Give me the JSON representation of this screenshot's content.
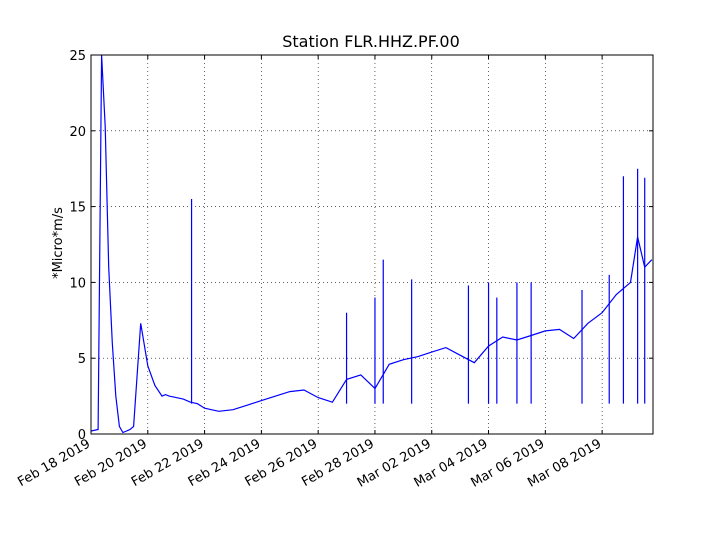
{
  "chart_data": {
    "type": "line",
    "title": "Station FLR.HHZ.PF.00",
    "xlabel": "",
    "ylabel": "*Micro*m/s",
    "ylim": [
      0,
      25
    ],
    "xlim": [
      "2019-02-18",
      "2019-03-09 19:00"
    ],
    "grid": true,
    "line_color": "#0000ff",
    "y_ticks": [
      0,
      5,
      10,
      15,
      20,
      25
    ],
    "x_ticks": [
      "Feb 18 2019",
      "Feb 20 2019",
      "Feb 22 2019",
      "Feb 24 2019",
      "Feb 26 2019",
      "Feb 28 2019",
      "Mar 02 2019",
      "Mar 04 2019",
      "Mar 06 2019",
      "Mar 08 2019"
    ],
    "series": [
      {
        "x": [
          "2019-02-18 00:00",
          "2019-02-18 06:00",
          "2019-02-18 09:00",
          "2019-02-18 12:00",
          "2019-02-18 15:00",
          "2019-02-18 18:00",
          "2019-02-18 21:00",
          "2019-02-19 00:00",
          "2019-02-19 03:00",
          "2019-02-19 06:00",
          "2019-02-19 09:00",
          "2019-02-19 12:00",
          "2019-02-19 18:00",
          "2019-02-20 00:00",
          "2019-02-20 06:00",
          "2019-02-20 12:00",
          "2019-02-20 15:00",
          "2019-02-20 18:00",
          "2019-02-21 00:00",
          "2019-02-21 06:00",
          "2019-02-21 12:00",
          "2019-02-21 18:00",
          "2019-02-22 00:00",
          "2019-02-22 12:00",
          "2019-02-23 00:00",
          "2019-02-23 12:00",
          "2019-02-24 00:00",
          "2019-02-24 12:00",
          "2019-02-25 00:00",
          "2019-02-25 12:00",
          "2019-02-26 00:00",
          "2019-02-26 12:00",
          "2019-02-27 00:00",
          "2019-02-27 12:00",
          "2019-02-28 00:00",
          "2019-02-28 12:00",
          "2019-03-01 00:00",
          "2019-03-01 12:00",
          "2019-03-02 00:00",
          "2019-03-02 12:00",
          "2019-03-03 00:00",
          "2019-03-03 12:00",
          "2019-03-04 00:00",
          "2019-03-04 12:00",
          "2019-03-05 00:00",
          "2019-03-05 12:00",
          "2019-03-06 00:00",
          "2019-03-06 12:00",
          "2019-03-07 00:00",
          "2019-03-07 12:00",
          "2019-03-08 00:00",
          "2019-03-08 12:00",
          "2019-03-09 00:00",
          "2019-03-09 06:00",
          "2019-03-09 12:00",
          "2019-03-09 18:00"
        ],
        "values": [
          0.2,
          0.3,
          25,
          20.3,
          11,
          6,
          2.5,
          0.5,
          0.1,
          0.2,
          0.3,
          0.5,
          7.3,
          4.5,
          3.2,
          2.5,
          2.6,
          2.5,
          2.4,
          2.3,
          2.1,
          2.0,
          1.7,
          1.5,
          1.6,
          1.9,
          2.2,
          2.5,
          2.8,
          2.9,
          2.4,
          2.1,
          3.6,
          3.9,
          3.0,
          4.6,
          4.9,
          5.1,
          5.4,
          5.7,
          5.2,
          4.7,
          5.8,
          6.4,
          6.2,
          6.5,
          6.8,
          6.9,
          6.3,
          7.3,
          8.0,
          9.2,
          10.0,
          13.0,
          11.0,
          11.5
        ]
      },
      {
        "x": [
          "2019-02-21 13:00",
          "2019-02-27 00:00",
          "2019-02-28 00:00",
          "2019-02-28 07:00",
          "2019-03-01 07:00",
          "2019-03-03 07:00",
          "2019-03-04 00:00",
          "2019-03-04 07:00",
          "2019-03-05 00:00",
          "2019-03-05 12:00",
          "2019-03-07 07:00",
          "2019-03-08 06:00",
          "2019-03-08 18:00",
          "2019-03-09 06:00",
          "2019-03-09 12:00"
        ],
        "values": [
          15.5,
          8.0,
          9.0,
          11.5,
          10.2,
          9.8,
          10.0,
          9.0,
          10.0,
          10.0,
          9.5,
          10.5,
          17.0,
          17.5,
          16.9
        ]
      }
    ]
  }
}
